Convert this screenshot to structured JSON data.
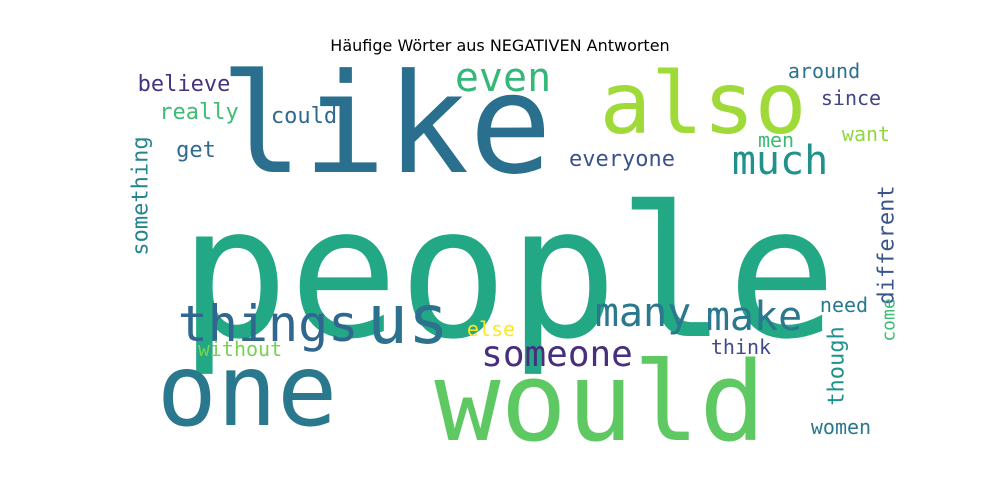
{
  "chart_data": {
    "type": "wordcloud",
    "title": "Häufige Wörter aus NEGATIVEN Antworten",
    "words": [
      {
        "text": "people",
        "color": "#22a884"
      },
      {
        "text": "like",
        "color": "#2a6f8e"
      },
      {
        "text": "would",
        "color": "#5ec962"
      },
      {
        "text": "one",
        "color": "#2a788e"
      },
      {
        "text": "also",
        "color": "#a0da39"
      },
      {
        "text": "us",
        "color": "#2c728e"
      },
      {
        "text": "things",
        "color": "#31678e"
      },
      {
        "text": "even",
        "color": "#35b779"
      },
      {
        "text": "much",
        "color": "#21918c"
      },
      {
        "text": "make",
        "color": "#2a788e"
      },
      {
        "text": "many",
        "color": "#2a788e"
      },
      {
        "text": "someone",
        "color": "#472f7d"
      },
      {
        "text": "everyone",
        "color": "#3b528b"
      },
      {
        "text": "believe",
        "color": "#46337e"
      },
      {
        "text": "really",
        "color": "#3fbc73"
      },
      {
        "text": "could",
        "color": "#31688e"
      },
      {
        "text": "get",
        "color": "#2f6b8e"
      },
      {
        "text": "something",
        "color": "#25858e"
      },
      {
        "text": "around",
        "color": "#2c728e"
      },
      {
        "text": "since",
        "color": "#414487"
      },
      {
        "text": "men",
        "color": "#3cbb75"
      },
      {
        "text": "want",
        "color": "#8fd744"
      },
      {
        "text": "different",
        "color": "#39568c"
      },
      {
        "text": "need",
        "color": "#2a788e"
      },
      {
        "text": "come",
        "color": "#3dbc74"
      },
      {
        "text": "though",
        "color": "#20928c"
      },
      {
        "text": "think",
        "color": "#3e4a89"
      },
      {
        "text": "else",
        "color": "#fde725"
      },
      {
        "text": "without",
        "color": "#7ad151"
      },
      {
        "text": "women",
        "color": "#2a788e"
      }
    ]
  }
}
